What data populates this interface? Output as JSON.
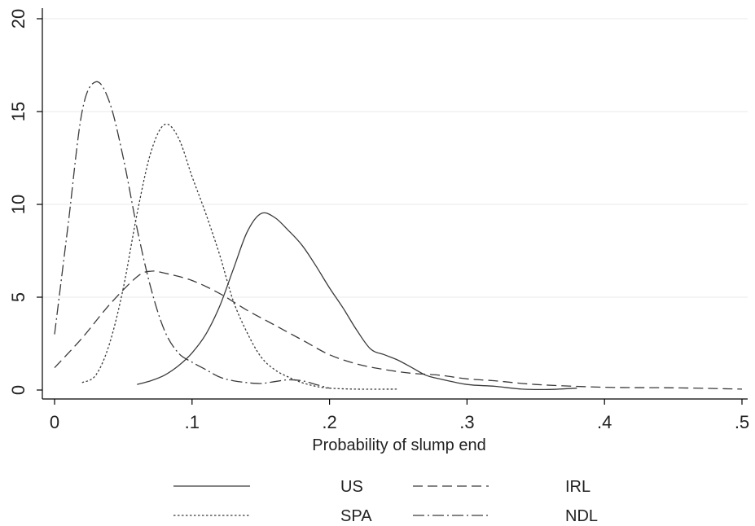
{
  "chart_data": {
    "type": "line",
    "title": "",
    "xlabel": "Probability of slump end",
    "ylabel": "",
    "xlim": [
      0,
      0.5
    ],
    "ylim": [
      0,
      20
    ],
    "x_ticks": [
      0,
      0.1,
      0.2,
      0.3,
      0.4,
      0.5
    ],
    "x_tick_labels": [
      "0",
      ".1",
      ".2",
      ".3",
      ".4",
      ".5"
    ],
    "y_ticks": [
      0,
      5,
      10,
      15,
      20
    ],
    "y_tick_labels": [
      "0",
      "5",
      "10",
      "15",
      "20"
    ],
    "grid": "horizontal",
    "legend_position": "bottom",
    "series": [
      {
        "name": "US",
        "dash": "solid",
        "points": [
          [
            0.06,
            0.3
          ],
          [
            0.07,
            0.5
          ],
          [
            0.08,
            0.8
          ],
          [
            0.09,
            1.3
          ],
          [
            0.1,
            2.0
          ],
          [
            0.11,
            3.0
          ],
          [
            0.12,
            4.5
          ],
          [
            0.13,
            6.5
          ],
          [
            0.14,
            8.5
          ],
          [
            0.15,
            9.5
          ],
          [
            0.16,
            9.3
          ],
          [
            0.17,
            8.6
          ],
          [
            0.18,
            7.8
          ],
          [
            0.19,
            6.7
          ],
          [
            0.2,
            5.5
          ],
          [
            0.21,
            4.4
          ],
          [
            0.22,
            3.2
          ],
          [
            0.23,
            2.2
          ],
          [
            0.24,
            1.9
          ],
          [
            0.25,
            1.6
          ],
          [
            0.26,
            1.2
          ],
          [
            0.27,
            0.8
          ],
          [
            0.28,
            0.6
          ],
          [
            0.3,
            0.3
          ],
          [
            0.32,
            0.2
          ],
          [
            0.34,
            0.05
          ],
          [
            0.36,
            0.03
          ],
          [
            0.38,
            0.1
          ]
        ]
      },
      {
        "name": "IRL",
        "dash": "long-dash",
        "points": [
          [
            0.0,
            1.2
          ],
          [
            0.02,
            2.8
          ],
          [
            0.04,
            4.6
          ],
          [
            0.06,
            6.1
          ],
          [
            0.07,
            6.4
          ],
          [
            0.08,
            6.3
          ],
          [
            0.1,
            5.9
          ],
          [
            0.12,
            5.2
          ],
          [
            0.14,
            4.3
          ],
          [
            0.16,
            3.5
          ],
          [
            0.18,
            2.7
          ],
          [
            0.2,
            1.9
          ],
          [
            0.22,
            1.4
          ],
          [
            0.24,
            1.1
          ],
          [
            0.26,
            0.9
          ],
          [
            0.28,
            0.8
          ],
          [
            0.3,
            0.6
          ],
          [
            0.32,
            0.5
          ],
          [
            0.35,
            0.3
          ],
          [
            0.4,
            0.15
          ],
          [
            0.45,
            0.12
          ],
          [
            0.5,
            0.05
          ]
        ]
      },
      {
        "name": "SPA",
        "dash": "dotted",
        "points": [
          [
            0.02,
            0.4
          ],
          [
            0.03,
            0.8
          ],
          [
            0.04,
            2.5
          ],
          [
            0.05,
            5.5
          ],
          [
            0.06,
            9.5
          ],
          [
            0.07,
            12.8
          ],
          [
            0.08,
            14.3
          ],
          [
            0.09,
            13.6
          ],
          [
            0.1,
            11.5
          ],
          [
            0.11,
            9.5
          ],
          [
            0.12,
            7.3
          ],
          [
            0.13,
            4.8
          ],
          [
            0.14,
            3.1
          ],
          [
            0.15,
            1.8
          ],
          [
            0.16,
            1.1
          ],
          [
            0.17,
            0.7
          ],
          [
            0.18,
            0.4
          ],
          [
            0.19,
            0.2
          ],
          [
            0.2,
            0.1
          ],
          [
            0.22,
            0.05
          ],
          [
            0.25,
            0.05
          ]
        ]
      },
      {
        "name": "NDL",
        "dash": "dash-dot",
        "points": [
          [
            0.0,
            3.0
          ],
          [
            0.01,
            9.0
          ],
          [
            0.02,
            15.0
          ],
          [
            0.03,
            16.6
          ],
          [
            0.04,
            15.5
          ],
          [
            0.05,
            12.5
          ],
          [
            0.06,
            8.7
          ],
          [
            0.07,
            5.5
          ],
          [
            0.08,
            3.2
          ],
          [
            0.09,
            2.0
          ],
          [
            0.1,
            1.5
          ],
          [
            0.11,
            1.1
          ],
          [
            0.12,
            0.7
          ],
          [
            0.13,
            0.5
          ],
          [
            0.14,
            0.4
          ],
          [
            0.15,
            0.35
          ],
          [
            0.16,
            0.45
          ],
          [
            0.17,
            0.55
          ],
          [
            0.18,
            0.5
          ],
          [
            0.19,
            0.3
          ],
          [
            0.2,
            0.1
          ]
        ]
      }
    ]
  }
}
